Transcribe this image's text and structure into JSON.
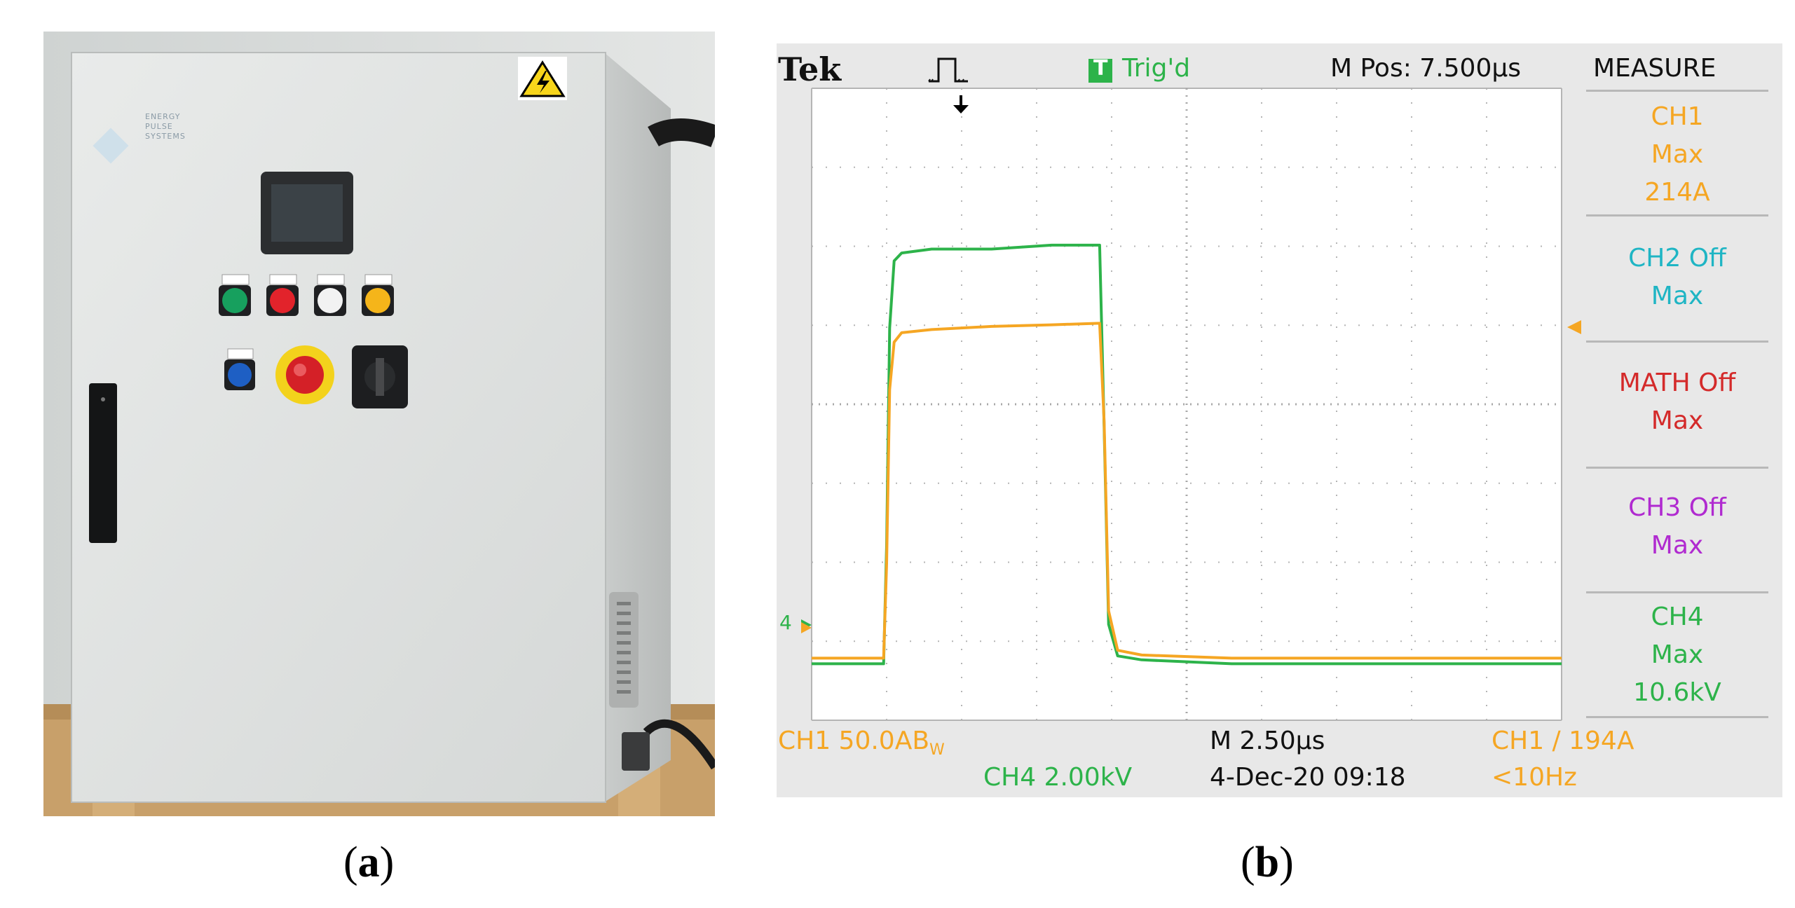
{
  "panel_a": {
    "label": "a",
    "enclosure_logo": [
      "ENERGY",
      "PULSE",
      "SYSTEMS"
    ]
  },
  "panel_b": {
    "label": "b",
    "brand": "Tek",
    "trigger_status": "Trig'd",
    "trigger_icon_letter": "T",
    "m_pos": "M Pos: 7.500µs",
    "measure_menu": {
      "title": "MEASURE",
      "items": [
        {
          "line1": "CH1",
          "line2": "Max",
          "line3": "214A",
          "color": "#f5a623"
        },
        {
          "line1": "CH2 Off",
          "line2": "Max",
          "line3": "",
          "color": "#1fb5c4"
        },
        {
          "line1": "MATH Off",
          "line2": "Max",
          "line3": "",
          "color": "#d42a2a"
        },
        {
          "line1": "CH3 Off",
          "line2": "Max",
          "line3": "",
          "color": "#b02ad0"
        },
        {
          "line1": "CH4",
          "line2": "Max",
          "line3": "10.6kV",
          "color": "#2db34a"
        }
      ]
    },
    "bottom": {
      "ch1_scale": "CH1  50.0A",
      "ch1_bw": "B",
      "ch1_bw_sub": "W",
      "timebase": "M 2.50µs",
      "trigger": "CH1  ∕  194A",
      "ch4_scale": "CH4  2.00kV",
      "datetime": "4-Dec-20 09:18",
      "freq": "<10Hz"
    },
    "ground_marker": "4",
    "colors": {
      "ch1": "#f5a623",
      "ch4": "#2db34a",
      "screen": "#ffffff",
      "background": "#e8e8e8"
    },
    "chart_data": {
      "type": "line",
      "x_unit": "µs",
      "x_per_division": 2.5,
      "x_divisions": 10,
      "series": [
        {
          "name": "CH1",
          "unit": "A",
          "per_division": 50.0,
          "x": [
            0,
            2.4,
            2.5,
            2.6,
            2.75,
            3.0,
            4.0,
            6.0,
            8.0,
            9.6,
            9.75,
            9.9,
            10.2,
            11.0,
            14.0,
            25.0
          ],
          "y": [
            0,
            0,
            60,
            170,
            200,
            206,
            208,
            210,
            211,
            212,
            150,
            30,
            5,
            2,
            0,
            0
          ]
        },
        {
          "name": "CH4",
          "unit": "kV",
          "per_division": 2.0,
          "x": [
            0,
            2.4,
            2.5,
            2.6,
            2.75,
            3.0,
            4.0,
            6.0,
            8.0,
            9.6,
            9.75,
            9.9,
            10.2,
            11.0,
            14.0,
            25.0
          ],
          "y": [
            0,
            0,
            3.0,
            8.5,
            10.2,
            10.4,
            10.5,
            10.5,
            10.6,
            10.6,
            6.0,
            1.0,
            0.2,
            0.1,
            0,
            0
          ]
        }
      ],
      "grid": true
    }
  }
}
